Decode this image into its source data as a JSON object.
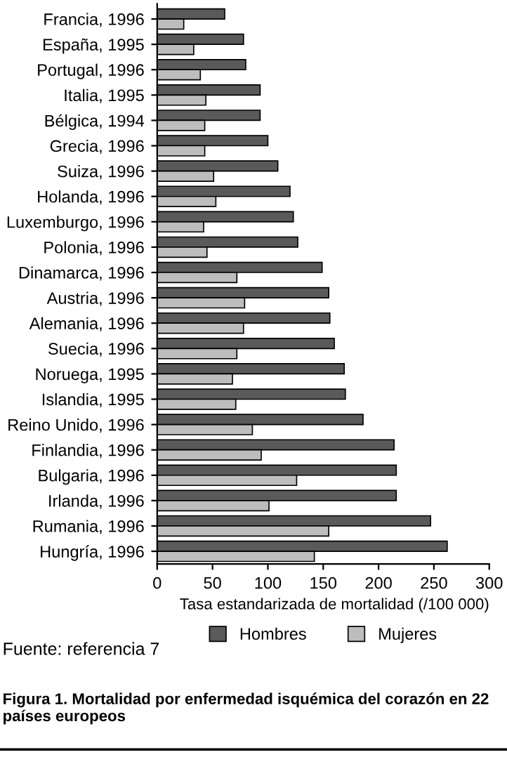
{
  "chart_data": {
    "type": "bar",
    "orientation": "horizontal",
    "title": "Figura 1. Mortalidad por enfermedad isquémica del corazón en 22 países europeos",
    "xlabel": "Tasa estandarizada de mortalidad (/100 000)",
    "annotations": [
      "Fuente: referencia 7"
    ],
    "categories": [
      "Francia, 1996",
      "España, 1995",
      "Portugal, 1996",
      "Italia, 1995",
      "Bélgica, 1994",
      "Grecia, 1996",
      "Suiza, 1996",
      "Holanda, 1996",
      "Luxemburgo, 1996",
      "Polonia, 1996",
      "Dinamarca, 1996",
      "Austria, 1996",
      "Alemania, 1996",
      "Suecia, 1996",
      "Noruega, 1995",
      "Islandia, 1995",
      "Reino Unido, 1996",
      "Finlandia, 1996",
      "Bulgaria, 1996",
      "Irlanda, 1996",
      "Rumania, 1996",
      "Hungría, 1996"
    ],
    "series": [
      {
        "name": "Hombres",
        "color": "#5a5a5a",
        "values": [
          61,
          78,
          80,
          93,
          93,
          100,
          109,
          120,
          123,
          127,
          149,
          155,
          156,
          160,
          169,
          170,
          186,
          214,
          216,
          216,
          247,
          262
        ]
      },
      {
        "name": "Mujeres",
        "color": "#bdbdbd",
        "values": [
          24,
          33,
          39,
          44,
          43,
          43,
          51,
          53,
          42,
          45,
          72,
          79,
          78,
          72,
          68,
          71,
          86,
          94,
          126,
          101,
          155,
          142
        ]
      }
    ],
    "xlim": [
      0,
      300
    ],
    "xticks": [
      0,
      50,
      100,
      150,
      200,
      250,
      300
    ],
    "grid": false,
    "legend": "bottom"
  }
}
